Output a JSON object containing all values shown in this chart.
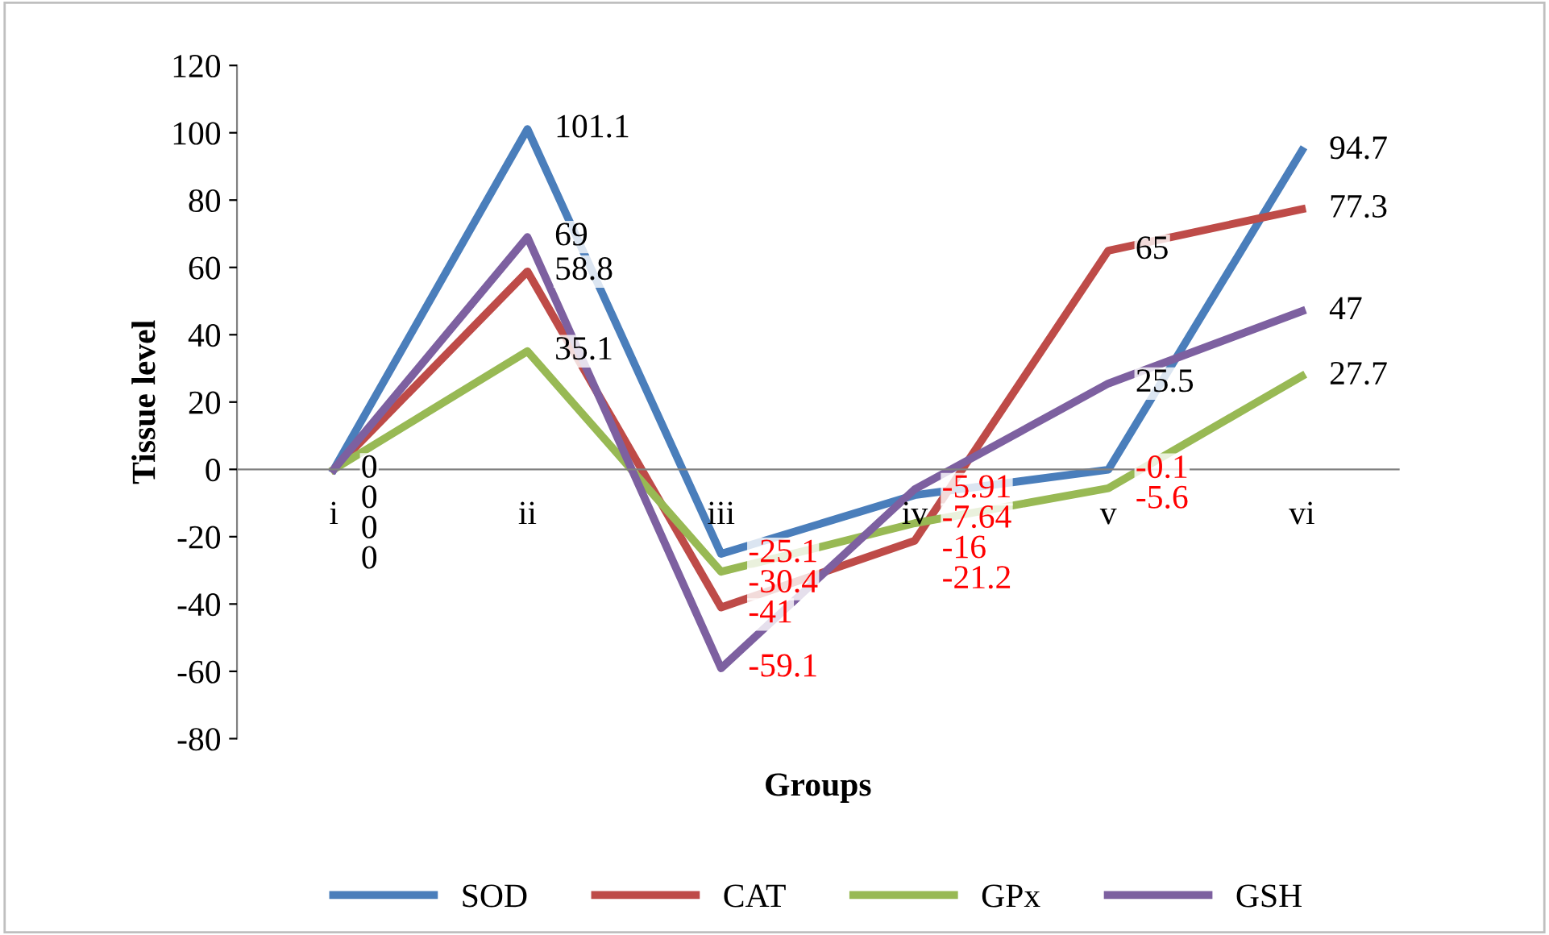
{
  "chart_data": {
    "type": "line",
    "xlabel": "Groups",
    "ylabel": "Tissue level",
    "categories": [
      "i",
      "ii",
      "iii",
      "iv",
      "v",
      "vi"
    ],
    "series": [
      {
        "name": "SOD",
        "color": "#4a7ebb",
        "values": [
          0,
          101.1,
          -25.1,
          -7.64,
          -0.1,
          94.7
        ]
      },
      {
        "name": "CAT",
        "color": "#be4b48",
        "values": [
          0,
          58.8,
          -41,
          -21.2,
          65,
          77.3
        ]
      },
      {
        "name": "GPx",
        "color": "#98b954",
        "values": [
          0,
          35.1,
          -30.4,
          -16,
          -5.6,
          27.7
        ]
      },
      {
        "name": "GSH",
        "color": "#7d60a0",
        "values": [
          0,
          69,
          -59.1,
          -5.91,
          25.5,
          47
        ]
      }
    ],
    "ylim": [
      -80,
      120
    ],
    "yticks": [
      -80,
      -60,
      -40,
      -20,
      0,
      20,
      40,
      60,
      80,
      100,
      120
    ],
    "data_labels": true,
    "legend": "bottom",
    "grid": false,
    "marker": "none",
    "line_style": "solid"
  }
}
